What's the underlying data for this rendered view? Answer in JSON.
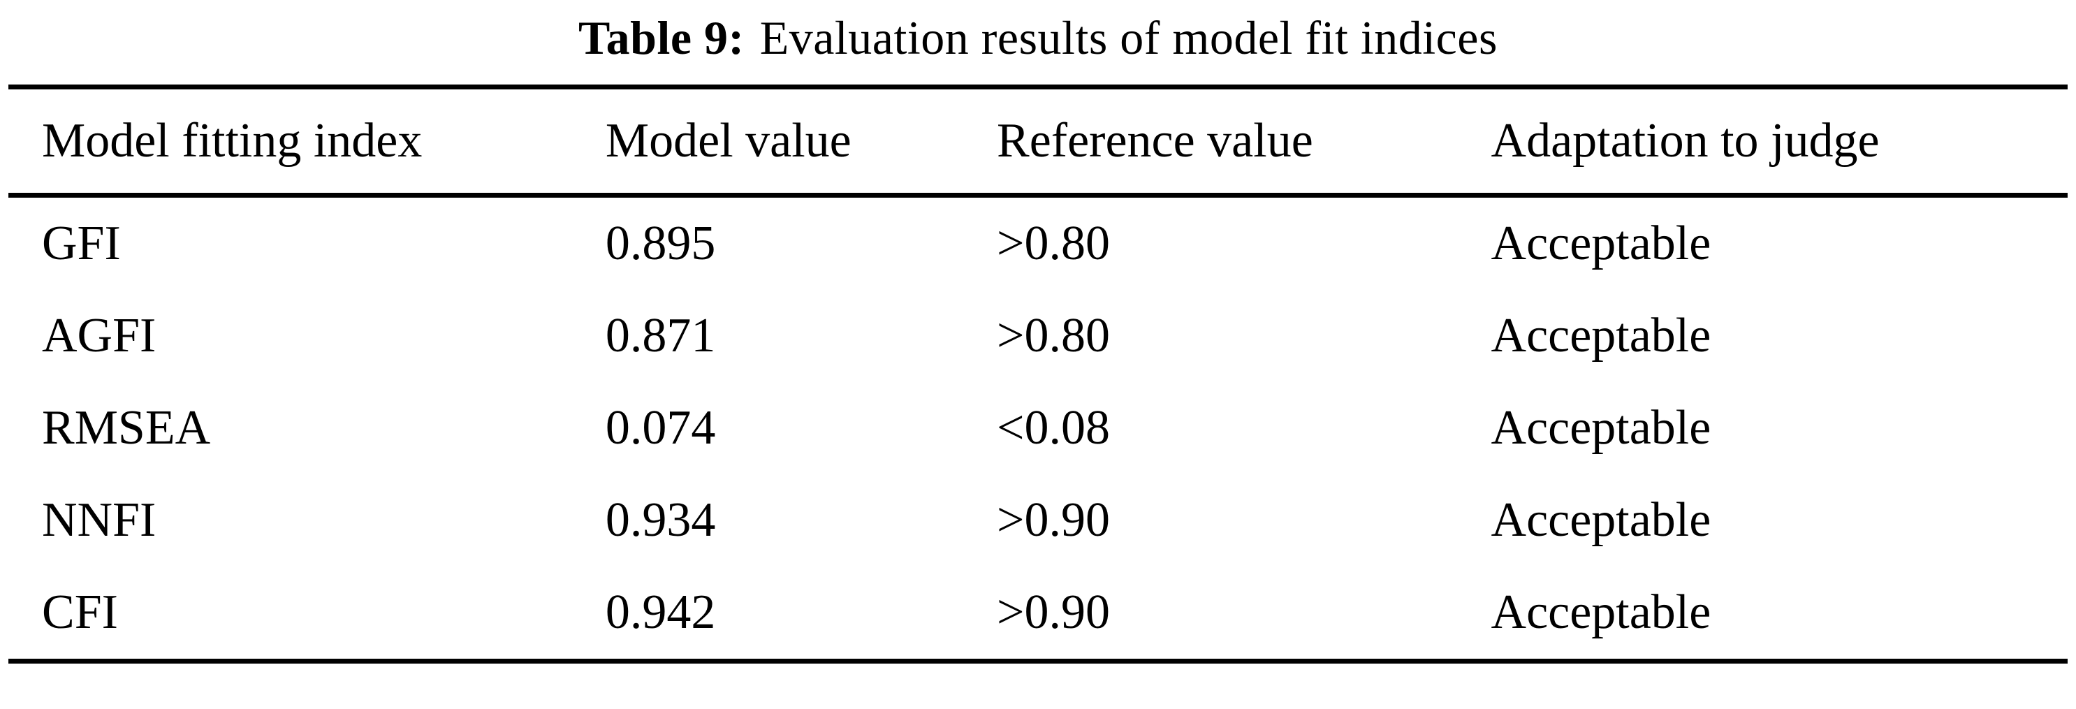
{
  "table": {
    "caption": {
      "label": "Table 9:",
      "text": "Evaluation results of model fit indices"
    },
    "headers": [
      "Model fitting index",
      "Model value",
      "Reference value",
      "Adaptation to judge"
    ],
    "rows": [
      [
        "GFI",
        "0.895",
        ">0.80",
        "Acceptable"
      ],
      [
        "AGFI",
        "0.871",
        ">0.80",
        "Acceptable"
      ],
      [
        "RMSEA",
        "0.074",
        "<0.08",
        "Acceptable"
      ],
      [
        "NNFI",
        "0.934",
        ">0.90",
        "Acceptable"
      ],
      [
        "CFI",
        "0.942",
        ">0.90",
        "Acceptable"
      ]
    ]
  }
}
